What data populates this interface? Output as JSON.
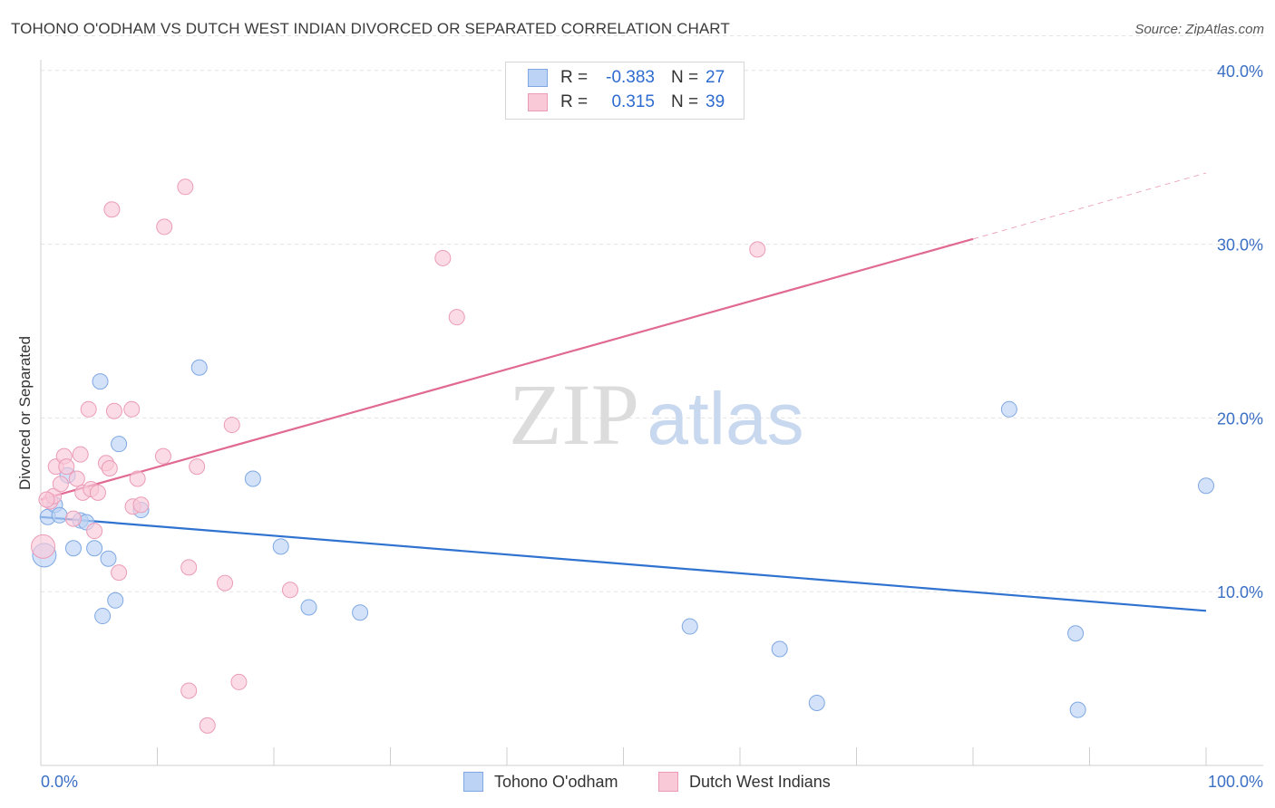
{
  "header": {
    "title": "TOHONO O'ODHAM VS DUTCH WEST INDIAN DIVORCED OR SEPARATED CORRELATION CHART",
    "source": "Source: ZipAtlas.com"
  },
  "legend": {
    "series1": {
      "r_label": "R =",
      "r_value": "-0.383",
      "n_label": "N =",
      "n_value": "27"
    },
    "series2": {
      "r_label": "R =",
      "r_value": "0.315",
      "n_label": "N =",
      "n_value": "39"
    }
  },
  "bottom_legend": {
    "series1": "Tohono O'odham",
    "series2": "Dutch West Indians"
  },
  "watermark": {
    "zip": "ZIP",
    "atlas": "atlas"
  },
  "colors": {
    "blue_fill": "#bcd3f5",
    "blue_stroke": "#7fa8e3",
    "blue_line": "#2f72d0",
    "pink_fill": "#f9c9d8",
    "pink_stroke": "#eb9bb6",
    "pink_line": "#e06a93"
  },
  "chart_data": {
    "type": "scatter",
    "title": "TOHONO O'ODHAM VS DUTCH WEST INDIAN DIVORCED OR SEPARATED CORRELATION CHART",
    "xlabel": "",
    "ylabel": "Divorced or Separated",
    "xlim": [
      0,
      100
    ],
    "ylim": [
      0,
      42
    ],
    "x_tick_labels": [
      "0.0%",
      "100.0%"
    ],
    "y_ticks": [
      10,
      20,
      30,
      40
    ],
    "y_tick_labels": [
      "10.0%",
      "20.0%",
      "30.0%",
      "40.0%"
    ],
    "series": [
      {
        "name": "Tohono O'odham",
        "points": [
          [
            0.3,
            12.1
          ],
          [
            0.6,
            14.3
          ],
          [
            1.2,
            15.0
          ],
          [
            1.6,
            14.4
          ],
          [
            2.3,
            16.7
          ],
          [
            2.8,
            12.5
          ],
          [
            3.4,
            14.1
          ],
          [
            3.9,
            14.0
          ],
          [
            4.6,
            12.5
          ],
          [
            5.1,
            22.1
          ],
          [
            5.3,
            8.6
          ],
          [
            5.8,
            11.9
          ],
          [
            6.4,
            9.5
          ],
          [
            6.7,
            18.5
          ],
          [
            8.6,
            14.7
          ],
          [
            13.6,
            22.9
          ],
          [
            18.2,
            16.5
          ],
          [
            20.6,
            12.6
          ],
          [
            23.0,
            9.1
          ],
          [
            27.4,
            8.8
          ],
          [
            55.7,
            8.0
          ],
          [
            66.6,
            3.6
          ],
          [
            63.4,
            6.7
          ],
          [
            83.1,
            20.5
          ],
          [
            88.8,
            7.6
          ],
          [
            89.0,
            3.2
          ],
          [
            100.0,
            16.1
          ]
        ],
        "trend": {
          "x": [
            0,
            100
          ],
          "y": [
            14.3,
            8.9
          ]
        }
      },
      {
        "name": "Dutch West Indians",
        "points": [
          [
            0.2,
            12.6
          ],
          [
            0.8,
            15.2
          ],
          [
            1.1,
            15.5
          ],
          [
            1.3,
            17.2
          ],
          [
            1.7,
            16.2
          ],
          [
            2.0,
            17.8
          ],
          [
            2.2,
            17.2
          ],
          [
            2.8,
            14.2
          ],
          [
            3.1,
            16.5
          ],
          [
            3.4,
            17.9
          ],
          [
            3.6,
            15.7
          ],
          [
            4.1,
            20.5
          ],
          [
            4.3,
            15.9
          ],
          [
            4.6,
            13.5
          ],
          [
            4.9,
            15.7
          ],
          [
            5.6,
            17.4
          ],
          [
            5.9,
            17.1
          ],
          [
            6.1,
            32.0
          ],
          [
            6.3,
            20.4
          ],
          [
            6.7,
            11.1
          ],
          [
            7.8,
            20.5
          ],
          [
            7.9,
            14.9
          ],
          [
            8.3,
            16.5
          ],
          [
            8.6,
            15.0
          ],
          [
            10.5,
            17.8
          ],
          [
            10.6,
            31.0
          ],
          [
            12.4,
            33.3
          ],
          [
            12.7,
            11.4
          ],
          [
            12.7,
            4.3
          ],
          [
            13.4,
            17.2
          ],
          [
            14.3,
            2.3
          ],
          [
            15.8,
            10.5
          ],
          [
            16.4,
            19.6
          ],
          [
            17.0,
            4.8
          ],
          [
            21.4,
            10.1
          ],
          [
            34.5,
            29.2
          ],
          [
            35.7,
            25.8
          ],
          [
            61.5,
            29.7
          ],
          [
            0.5,
            15.3
          ]
        ],
        "trend": {
          "x": [
            0,
            80
          ],
          "y": [
            15.3,
            30.3
          ]
        },
        "trend_dashed": {
          "x": [
            80,
            100
          ],
          "y": [
            30.3,
            34.1
          ]
        }
      }
    ]
  }
}
